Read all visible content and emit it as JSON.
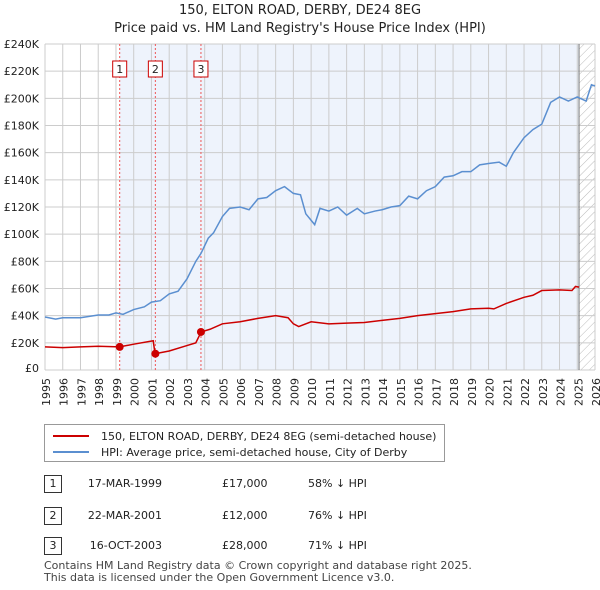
{
  "chart_data": {
    "type": "line",
    "title": "150, ELTON ROAD, DERBY, DE24 8EG",
    "subtitle": "Price paid vs. HM Land Registry's House Price Index (HPI)",
    "xlim": [
      1995,
      2026
    ],
    "ylim": [
      0,
      240000
    ],
    "x_ticks": [
      "1995",
      "1996",
      "1997",
      "1998",
      "1999",
      "2000",
      "2001",
      "2002",
      "2003",
      "2004",
      "2005",
      "2006",
      "2007",
      "2008",
      "2009",
      "2010",
      "2011",
      "2012",
      "2013",
      "2014",
      "2015",
      "2016",
      "2017",
      "2018",
      "2019",
      "2020",
      "2021",
      "2022",
      "2023",
      "2024",
      "2025",
      "2026"
    ],
    "y_ticks": [
      "£0",
      "£20K",
      "£40K",
      "£60K",
      "£80K",
      "£100K",
      "£120K",
      "£140K",
      "£160K",
      "£180K",
      "£200K",
      "£220K",
      "£240K"
    ],
    "series": [
      {
        "name": "150, ELTON ROAD, DERBY, DE24 8EG (semi-detached house)",
        "color": "#cc0000",
        "points": [
          [
            1995,
            17000
          ],
          [
            1996,
            16500
          ],
          [
            1997,
            17000
          ],
          [
            1998,
            17500
          ],
          [
            1999.2,
            17000
          ],
          [
            2000,
            19000
          ],
          [
            2001.1,
            21500
          ],
          [
            2001.2,
            12000
          ],
          [
            2002,
            14000
          ],
          [
            2003,
            18000
          ],
          [
            2003.5,
            20000
          ],
          [
            2003.8,
            28000
          ],
          [
            2004.3,
            30000
          ],
          [
            2005,
            34000
          ],
          [
            2006,
            35500
          ],
          [
            2007,
            38000
          ],
          [
            2008,
            40000
          ],
          [
            2008.7,
            38500
          ],
          [
            2009,
            34000
          ],
          [
            2009.3,
            32000
          ],
          [
            2010,
            35500
          ],
          [
            2011,
            34000
          ],
          [
            2012,
            34500
          ],
          [
            2013,
            35000
          ],
          [
            2014,
            36500
          ],
          [
            2015,
            38000
          ],
          [
            2016,
            40000
          ],
          [
            2017,
            41500
          ],
          [
            2018,
            43000
          ],
          [
            2019,
            45000
          ],
          [
            2020,
            45500
          ],
          [
            2020.3,
            45000
          ],
          [
            2021,
            49000
          ],
          [
            2022,
            53500
          ],
          [
            2022.5,
            55000
          ],
          [
            2023,
            58500
          ],
          [
            2024,
            59000
          ],
          [
            2024.7,
            58500
          ],
          [
            2024.9,
            61500
          ],
          [
            2025.1,
            61000
          ]
        ]
      },
      {
        "name": "HPI: Average price, semi-detached house, City of Derby",
        "color": "#5b8fd0",
        "points": [
          [
            1995,
            39000
          ],
          [
            1995.6,
            37500
          ],
          [
            1996,
            38500
          ],
          [
            1997,
            38500
          ],
          [
            1998,
            40500
          ],
          [
            1998.6,
            40500
          ],
          [
            1999,
            42000
          ],
          [
            1999.4,
            41000
          ],
          [
            2000,
            44500
          ],
          [
            2000.6,
            46500
          ],
          [
            2001,
            50000
          ],
          [
            2001.5,
            51000
          ],
          [
            2002,
            56000
          ],
          [
            2002.5,
            58000
          ],
          [
            2003,
            67000
          ],
          [
            2003.5,
            80000
          ],
          [
            2003.8,
            86000
          ],
          [
            2004.2,
            97000
          ],
          [
            2004.5,
            101000
          ],
          [
            2005,
            113000
          ],
          [
            2005.4,
            119000
          ],
          [
            2006,
            120000
          ],
          [
            2006.5,
            118000
          ],
          [
            2007,
            126000
          ],
          [
            2007.5,
            127000
          ],
          [
            2008,
            132000
          ],
          [
            2008.5,
            135000
          ],
          [
            2009,
            130000
          ],
          [
            2009.4,
            129000
          ],
          [
            2009.7,
            115000
          ],
          [
            2010.2,
            107000
          ],
          [
            2010.5,
            119000
          ],
          [
            2011,
            117000
          ],
          [
            2011.5,
            120000
          ],
          [
            2012,
            114000
          ],
          [
            2012.6,
            119000
          ],
          [
            2013,
            115000
          ],
          [
            2013.6,
            117000
          ],
          [
            2014,
            118000
          ],
          [
            2014.5,
            120000
          ],
          [
            2015,
            121000
          ],
          [
            2015.5,
            128000
          ],
          [
            2016,
            126000
          ],
          [
            2016.5,
            132000
          ],
          [
            2017,
            135000
          ],
          [
            2017.5,
            142000
          ],
          [
            2018,
            143000
          ],
          [
            2018.5,
            146000
          ],
          [
            2019,
            146000
          ],
          [
            2019.5,
            151000
          ],
          [
            2020,
            152000
          ],
          [
            2020.6,
            153000
          ],
          [
            2021,
            150000
          ],
          [
            2021.4,
            160000
          ],
          [
            2022,
            171000
          ],
          [
            2022.5,
            177000
          ],
          [
            2023,
            181000
          ],
          [
            2023.5,
            197000
          ],
          [
            2024,
            201000
          ],
          [
            2024.5,
            198000
          ],
          [
            2025,
            201000
          ],
          [
            2025.5,
            198000
          ],
          [
            2025.8,
            210000
          ],
          [
            2026,
            209000
          ]
        ]
      }
    ],
    "sales": [
      {
        "label": "1",
        "x": 1999.21,
        "y": 17000
      },
      {
        "label": "2",
        "x": 2001.22,
        "y": 12000
      },
      {
        "label": "3",
        "x": 2003.79,
        "y": 28000
      }
    ],
    "shade_from": 1999.21,
    "data_end": 2025.1,
    "grid": true,
    "legend_placement": "below"
  },
  "legend": {
    "red": "150, ELTON ROAD, DERBY, DE24 8EG (semi-detached house)",
    "blue": "HPI: Average price, semi-detached house, City of Derby"
  },
  "transactions": [
    {
      "n": "1",
      "date": "17-MAR-1999",
      "price": "£17,000",
      "hpi": "58% ↓ HPI"
    },
    {
      "n": "2",
      "date": "22-MAR-2001",
      "price": "£12,000",
      "hpi": "76% ↓ HPI"
    },
    {
      "n": "3",
      "date": "16-OCT-2003",
      "price": "£28,000",
      "hpi": "71% ↓ HPI"
    }
  ],
  "footer": [
    "Contains HM Land Registry data © Crown copyright and database right 2025.",
    "This data is licensed under the Open Government Licence v3.0."
  ]
}
